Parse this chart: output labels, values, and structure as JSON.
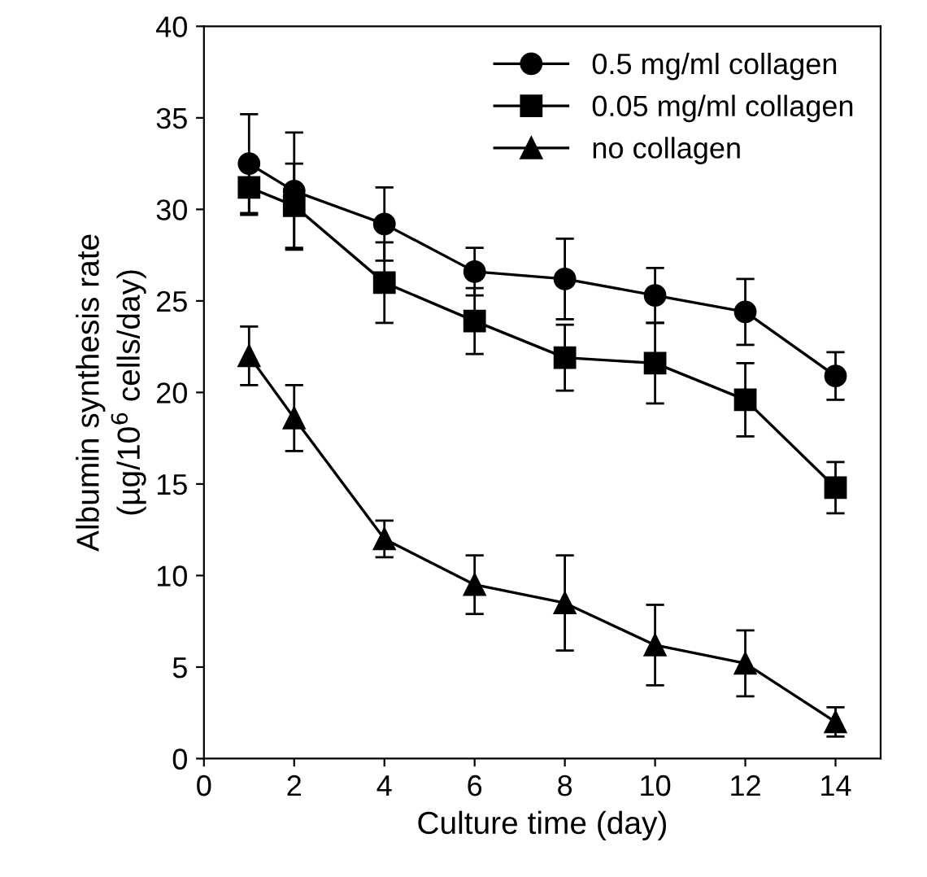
{
  "chart_data": {
    "type": "line",
    "xlabel": "Culture time (day)",
    "ylabel": "Albumin synthesis rate\n(µg/10$^{6}$ cells/day)",
    "x": [
      1,
      2,
      4,
      6,
      8,
      10,
      12,
      14
    ],
    "series": [
      {
        "name": "0.5 mg/ml collagen",
        "color": "#000000",
        "marker": "circle",
        "values": [
          32.5,
          31.0,
          29.2,
          26.6,
          26.2,
          25.3,
          24.4,
          20.9
        ],
        "errors": [
          2.7,
          3.2,
          2.0,
          1.3,
          2.2,
          1.5,
          1.8,
          1.3
        ]
      },
      {
        "name": "0.05 mg/ml collagen",
        "color": "#000000",
        "marker": "square",
        "values": [
          31.2,
          30.2,
          26.0,
          23.9,
          21.9,
          21.6,
          19.6,
          14.8
        ],
        "errors": [
          1.5,
          2.3,
          2.2,
          1.8,
          1.8,
          2.2,
          2.0,
          1.4
        ]
      },
      {
        "name": "no collagen",
        "color": "#000000",
        "marker": "triangle",
        "values": [
          22.0,
          18.6,
          12.0,
          9.5,
          8.5,
          6.2,
          5.2,
          2.0
        ],
        "errors": [
          1.6,
          1.8,
          1.0,
          1.6,
          2.6,
          2.2,
          1.8,
          0.8
        ]
      }
    ],
    "xlim": [
      0,
      15
    ],
    "xticks": [
      0,
      2,
      4,
      6,
      8,
      10,
      12,
      14
    ],
    "ylim": [
      0,
      40
    ],
    "yticks": [
      0,
      5,
      10,
      15,
      20,
      25,
      30,
      35,
      40
    ],
    "grid": false,
    "legend": "top right",
    "line_style": "solid"
  }
}
